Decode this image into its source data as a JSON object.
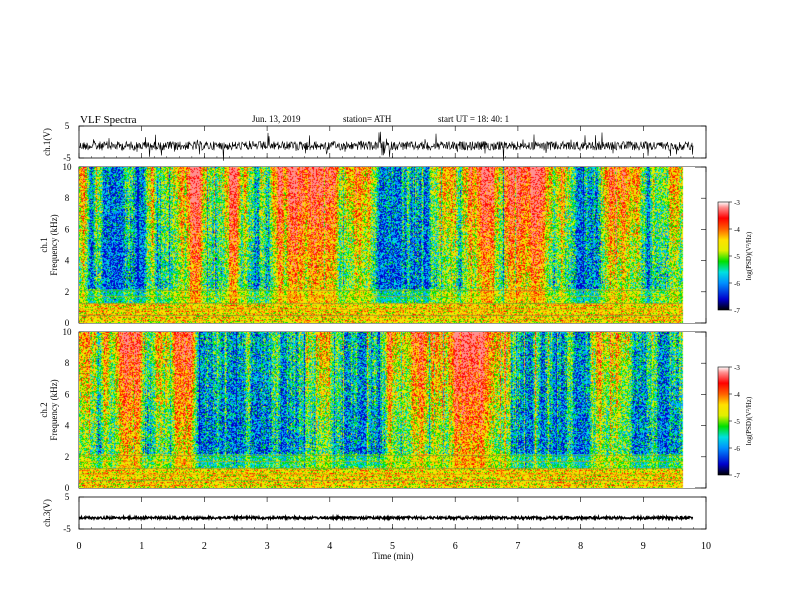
{
  "header": {
    "title": "VLF  Spectra",
    "date": "Jun. 13, 2019",
    "station": "station= ATH",
    "start": "start  UT  =    18: 40: 1"
  },
  "chart_data": [
    {
      "type": "line",
      "panel": "ch1-waveform",
      "ylabel": "ch.1(V)",
      "yticks": [
        "5",
        "-5"
      ],
      "ylim": [
        -5,
        5
      ],
      "x": [
        0,
        9.8
      ],
      "values": [
        -1.2,
        -1.2
      ],
      "color": "#000000"
    },
    {
      "type": "heatmap",
      "panel": "ch1-spectrogram",
      "ylabel_channel": "ch.1",
      "ylabel": "Frequency  (kHz)",
      "yticks": [
        "0",
        "2",
        "4",
        "6",
        "8",
        "10"
      ],
      "ylim": [
        0,
        10
      ],
      "xlim": [
        0,
        9.8
      ],
      "colorbar": {
        "label": "log(PSD)(V²/Hz)",
        "ticks": [
          "-3",
          "-4",
          "-5",
          "-6",
          "-7"
        ],
        "range": [
          -7,
          -3
        ]
      }
    },
    {
      "type": "heatmap",
      "panel": "ch2-spectrogram",
      "ylabel_channel": "ch.2",
      "ylabel": "Frequency  (kHz)",
      "yticks": [
        "0",
        "2",
        "4",
        "6",
        "8",
        "10"
      ],
      "ylim": [
        0,
        10
      ],
      "xlim": [
        0,
        9.8
      ],
      "colorbar": {
        "label": "log(PSD)(V²/Hz)",
        "ticks": [
          "-3",
          "-4",
          "-5",
          "-6",
          "-7"
        ],
        "range": [
          -7,
          -3
        ]
      }
    },
    {
      "type": "line",
      "panel": "ch3-waveform",
      "ylabel": "ch.3(V)",
      "yticks": [
        "5",
        "-5"
      ],
      "ylim": [
        -5,
        5
      ],
      "x": [
        0,
        9.8
      ],
      "values": [
        -1.5,
        -1.5
      ],
      "color": "#000000"
    }
  ],
  "xaxis": {
    "label": "Time  (min)",
    "ticks": [
      "0",
      "1",
      "2",
      "3",
      "4",
      "5",
      "6",
      "7",
      "8",
      "9",
      "10"
    ],
    "range": [
      0,
      10
    ]
  },
  "colormap": [
    "#000000",
    "#0000cc",
    "#0090ff",
    "#00e0e0",
    "#00e000",
    "#e0f000",
    "#ffe000",
    "#ff6000",
    "#ff0000",
    "#ff9090",
    "#ffffff"
  ]
}
